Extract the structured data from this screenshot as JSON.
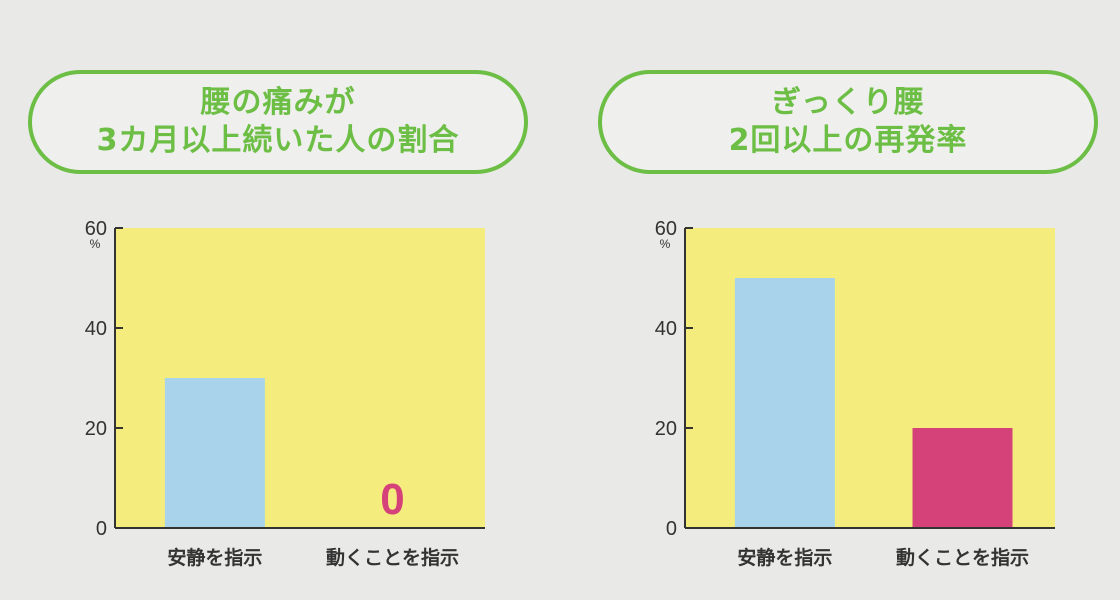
{
  "chart_data": [
    {
      "type": "bar",
      "title": [
        "腰の痛みが",
        "3カ月以上続いた人の割合"
      ],
      "ylabel": "%",
      "ylim": [
        0,
        60
      ],
      "yticks": [
        "0",
        "20",
        "40",
        "60"
      ],
      "categories": [
        "安静を指示",
        "動くことを指示"
      ],
      "values": [
        30,
        0
      ],
      "bar_colors": [
        "#a9d3ea",
        "#d5427a"
      ],
      "data_labels": [
        "",
        "0"
      ],
      "plot_bg": "#f5ec7e",
      "grid": false
    },
    {
      "type": "bar",
      "title": [
        "ぎっくり腰",
        "2回以上の再発率"
      ],
      "ylabel": "%",
      "ylim": [
        0,
        60
      ],
      "yticks": [
        "0",
        "20",
        "40",
        "60"
      ],
      "categories": [
        "安静を指示",
        "動くことを指示"
      ],
      "values": [
        50,
        20
      ],
      "bar_colors": [
        "#a9d3ea",
        "#d5427a"
      ],
      "data_labels": [
        "",
        ""
      ],
      "plot_bg": "#f5ec7e",
      "grid": false
    }
  ],
  "colors": {
    "accent_green": "#6cbe45",
    "page_bg": "#e9e9e7",
    "axis": "#333333"
  }
}
